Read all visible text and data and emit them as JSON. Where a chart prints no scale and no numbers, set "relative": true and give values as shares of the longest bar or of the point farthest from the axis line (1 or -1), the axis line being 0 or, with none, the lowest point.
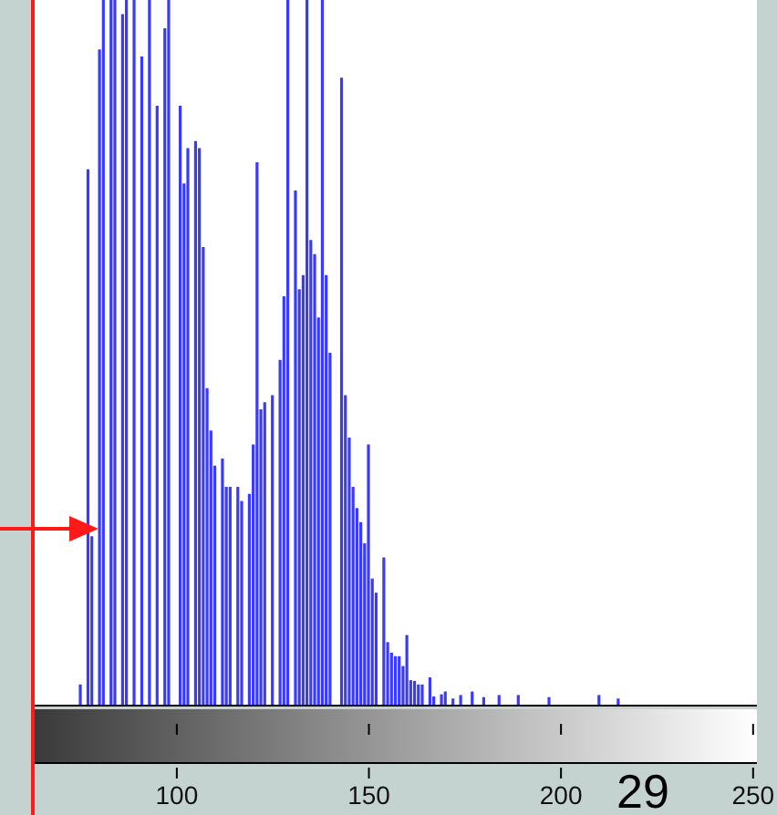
{
  "chart_data": {
    "type": "bar",
    "relative": true,
    "color": "#3a3aff",
    "x": [
      75,
      77,
      78,
      80,
      81,
      83,
      84,
      86,
      87,
      89,
      91,
      93,
      95,
      97,
      98,
      101,
      102,
      103,
      105,
      106,
      107,
      108,
      109,
      110,
      112,
      113,
      114,
      116,
      117,
      119,
      120,
      121,
      122,
      123,
      125,
      127,
      128,
      129,
      131,
      132,
      133,
      134,
      135,
      136,
      137,
      138,
      139,
      140,
      143,
      144,
      145,
      146,
      147,
      148,
      149,
      150,
      151,
      152,
      154,
      155,
      156,
      157,
      158,
      159,
      160,
      161,
      162,
      163,
      164,
      166,
      167,
      169,
      170,
      172,
      174,
      177,
      180,
      184,
      189,
      197,
      210,
      215
    ],
    "values": [
      0.03,
      0.76,
      0.24,
      0.93,
      1,
      1,
      1,
      0.98,
      1,
      1,
      0.92,
      1,
      0.85,
      0.96,
      1,
      0.85,
      0.74,
      0.79,
      0.8,
      0.79,
      0.65,
      0.45,
      0.39,
      0.34,
      0.35,
      0.31,
      0.31,
      0.31,
      0.29,
      0.3,
      0.37,
      0.77,
      0.42,
      0.43,
      0.44,
      0.49,
      0.58,
      1,
      0.73,
      0.59,
      0.61,
      1,
      0.66,
      0.64,
      0.55,
      1,
      0.61,
      0.5,
      0.89,
      0.44,
      0.38,
      0.31,
      0.28,
      0.26,
      0.23,
      0.37,
      0.18,
      0.16,
      0.21,
      0.09,
      0.075,
      0.07,
      0.07,
      0.056,
      0.1,
      0.036,
      0.035,
      0.03,
      0.03,
      0.04,
      0.013,
      0.016,
      0.02,
      0.01,
      0.015,
      0.02,
      0.012,
      0.015,
      0.015,
      0.012,
      0.015,
      0.01
    ],
    "xlim": [
      63,
      251
    ],
    "xticks": [
      100,
      150,
      200,
      250
    ],
    "annotations": [
      "29"
    ]
  }
}
